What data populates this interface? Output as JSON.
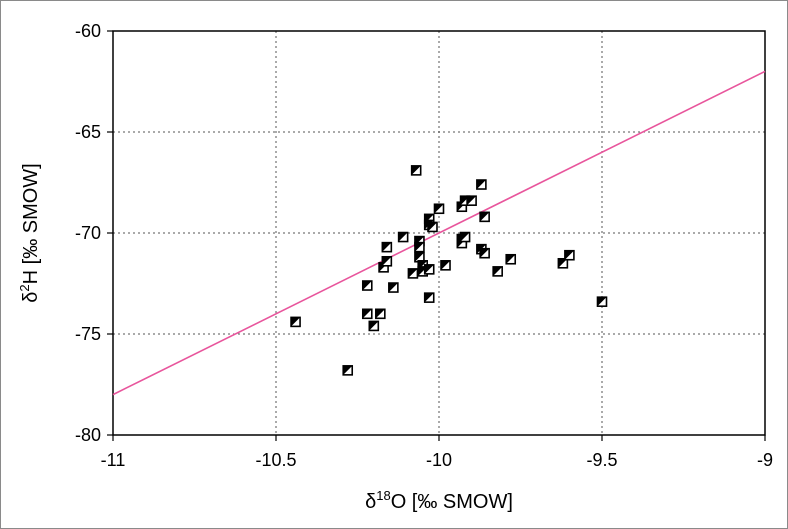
{
  "chart_data": {
    "type": "scatter",
    "title": "",
    "xlabel": "δ18O [‰ SMOW]",
    "ylabel": "δ2H [‰ SMOW]",
    "xlabel_parts": {
      "prefix": "δ",
      "sup": "18",
      "suffix": "O [‰ SMOW]"
    },
    "ylabel_parts": {
      "prefix": "δ",
      "sup": "2",
      "suffix": "H [‰ SMOW]"
    },
    "xlim": [
      -11,
      -9
    ],
    "ylim": [
      -80,
      -60
    ],
    "xticks": [
      -11,
      -10.5,
      -10,
      -9.5,
      -9
    ],
    "yticks": [
      -80,
      -75,
      -70,
      -65,
      -60
    ],
    "grid": true,
    "legend": "none",
    "marker_color": "#000000",
    "line_color": "#e8559c",
    "line": {
      "x": [
        -11,
        -9
      ],
      "y": [
        -78,
        -62
      ]
    },
    "points": [
      {
        "x": -10.44,
        "y": -74.4
      },
      {
        "x": -10.28,
        "y": -76.8
      },
      {
        "x": -10.22,
        "y": -72.6
      },
      {
        "x": -10.22,
        "y": -74.0
      },
      {
        "x": -10.2,
        "y": -74.6
      },
      {
        "x": -10.18,
        "y": -74.0
      },
      {
        "x": -10.17,
        "y": -71.7
      },
      {
        "x": -10.16,
        "y": -70.7
      },
      {
        "x": -10.16,
        "y": -71.4
      },
      {
        "x": -10.14,
        "y": -72.7
      },
      {
        "x": -10.11,
        "y": -70.2
      },
      {
        "x": -10.08,
        "y": -72.0
      },
      {
        "x": -10.07,
        "y": -66.9
      },
      {
        "x": -10.06,
        "y": -70.4
      },
      {
        "x": -10.06,
        "y": -70.7
      },
      {
        "x": -10.06,
        "y": -71.2
      },
      {
        "x": -10.05,
        "y": -71.6
      },
      {
        "x": -10.05,
        "y": -71.9
      },
      {
        "x": -10.03,
        "y": -69.3
      },
      {
        "x": -10.03,
        "y": -69.6
      },
      {
        "x": -10.03,
        "y": -71.8
      },
      {
        "x": -10.03,
        "y": -73.2
      },
      {
        "x": -10.02,
        "y": -69.7
      },
      {
        "x": -10.0,
        "y": -68.8
      },
      {
        "x": -9.98,
        "y": -71.6
      },
      {
        "x": -9.93,
        "y": -68.7
      },
      {
        "x": -9.93,
        "y": -70.3
      },
      {
        "x": -9.93,
        "y": -70.5
      },
      {
        "x": -9.92,
        "y": -68.4
      },
      {
        "x": -9.92,
        "y": -70.2
      },
      {
        "x": -9.9,
        "y": -68.4
      },
      {
        "x": -9.87,
        "y": -67.6
      },
      {
        "x": -9.87,
        "y": -70.8
      },
      {
        "x": -9.86,
        "y": -71.0
      },
      {
        "x": -9.86,
        "y": -69.2
      },
      {
        "x": -9.82,
        "y": -71.9
      },
      {
        "x": -9.78,
        "y": -71.3
      },
      {
        "x": -9.62,
        "y": -71.5
      },
      {
        "x": -9.6,
        "y": -71.1
      },
      {
        "x": -9.5,
        "y": -73.4
      }
    ]
  }
}
